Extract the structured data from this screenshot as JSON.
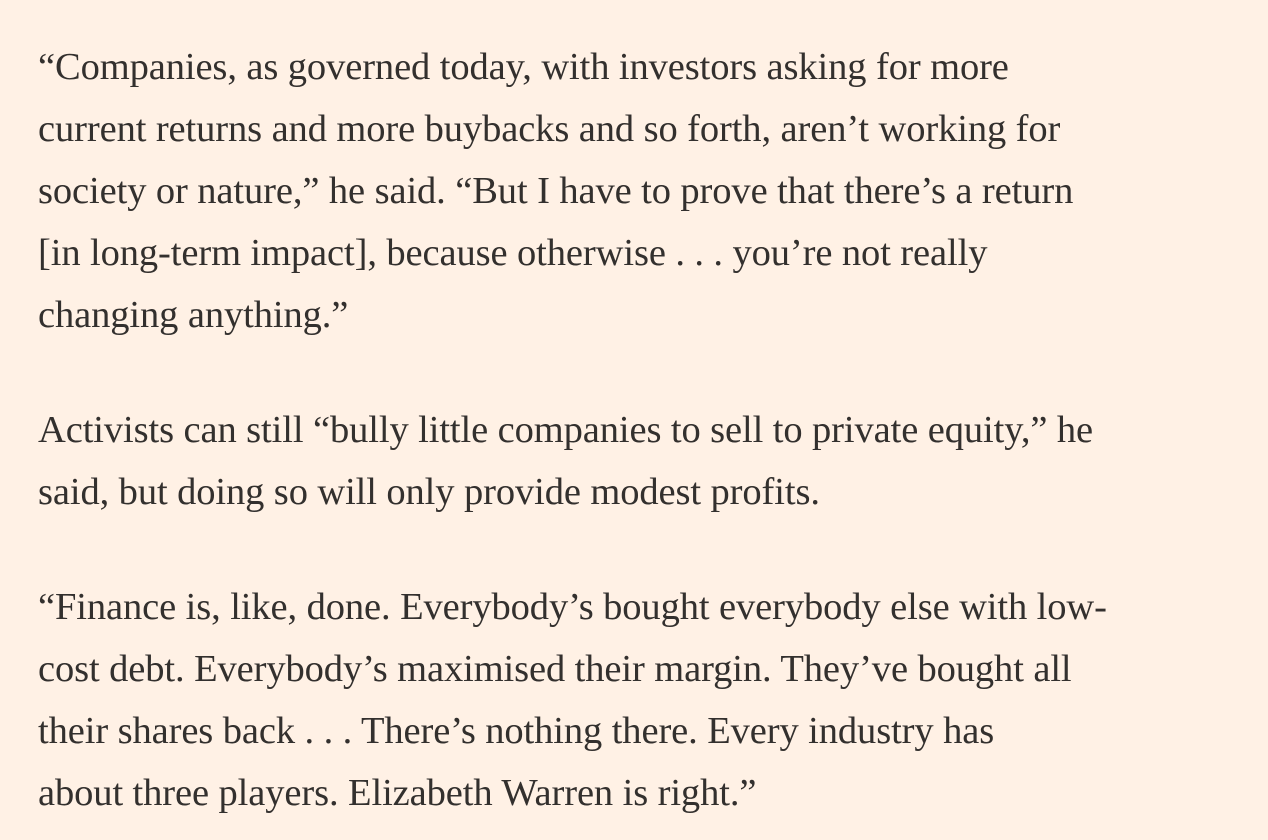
{
  "article": {
    "paragraphs": [
      {
        "lines": [
          "“Companies, as governed today, with investors asking for more",
          "current returns and more buybacks and so forth, aren’t working for",
          "society or nature,” he said. “But I have to prove that there’s a return",
          "[in long-term impact], because otherwise . . . you’re not really",
          "changing anything.”"
        ]
      },
      {
        "lines": [
          "Activists can still “bully little companies to sell to private equity,” he",
          "said, but doing so will only provide modest profits."
        ]
      },
      {
        "lines": [
          "“Finance is, like, done. Everybody’s bought everybody else with low-",
          "cost debt. Everybody’s maximised their margin. They’ve bought all",
          "their shares back . . . There’s nothing there. Every industry has",
          "about three players. Elizabeth Warren is right.”"
        ]
      }
    ]
  }
}
